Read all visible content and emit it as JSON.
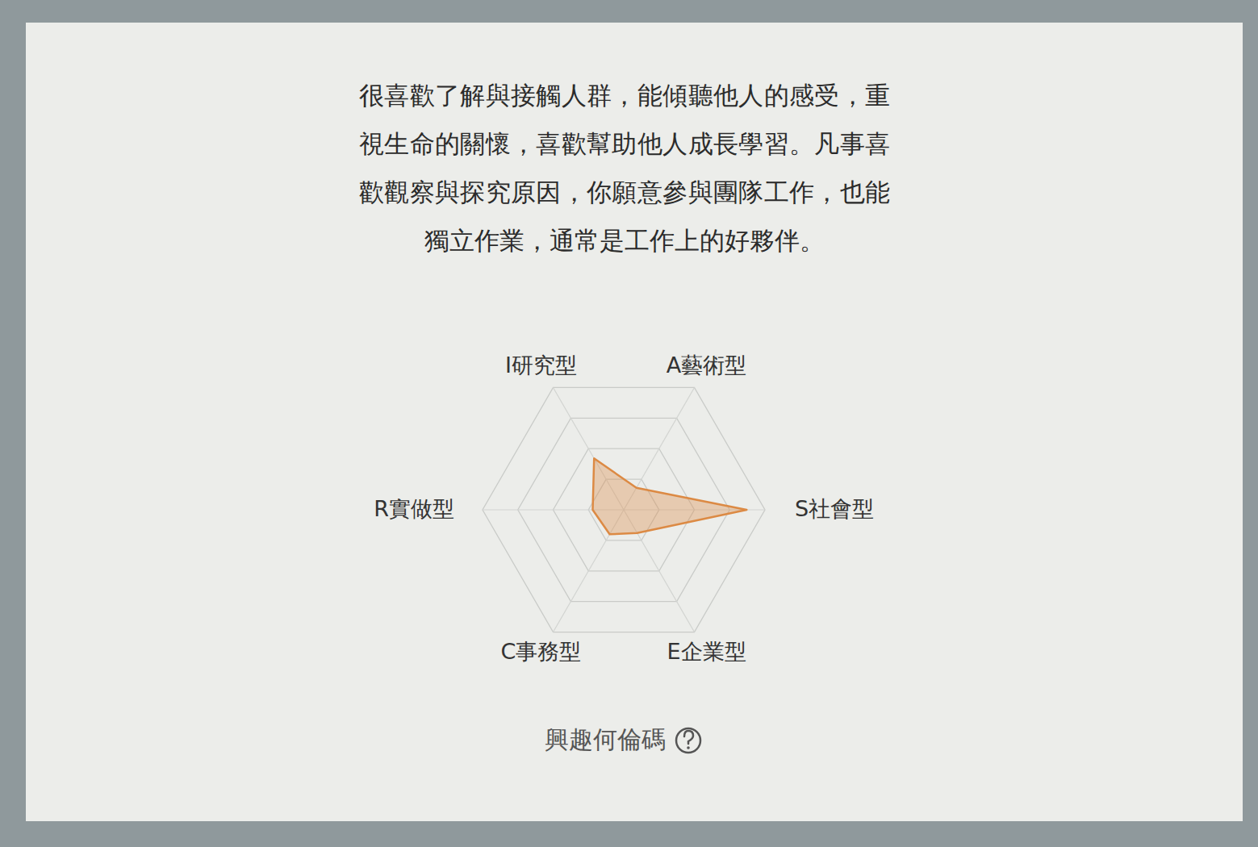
{
  "chart_data": {
    "type": "radar",
    "title": "興趣何倫碼",
    "subtitle": "很喜歡了解與接觸人群，能傾聽他人的感受，重視生命的關懷，喜歡幫助他人成長學習。凡事喜歡觀察與探究原因，你願意參與團隊工作，也能獨立作業，通常是工作上的好夥伴。",
    "categories": [
      "I研究型",
      "A藝術型",
      "S社會型",
      "E企業型",
      "C事務型",
      "R實做型"
    ],
    "values": [
      42,
      18,
      87,
      19,
      20,
      22
    ],
    "color": "#dc8a44",
    "ylim": [
      0,
      100
    ],
    "yticks": [
      25,
      50,
      75,
      100
    ],
    "grid": true,
    "tick_labels": "x"
  }
}
